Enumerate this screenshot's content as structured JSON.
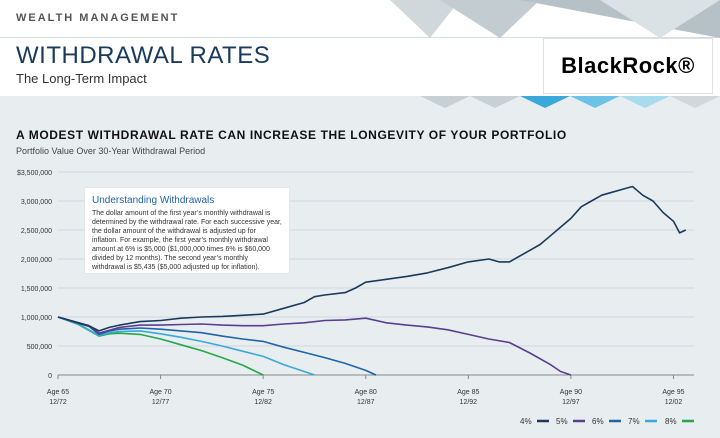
{
  "header": {
    "section": "WEALTH MANAGEMENT",
    "title": "WITHDRAWAL RATES",
    "subtitle": "The Long-Term Impact",
    "logo": "BlackRock®"
  },
  "chart_header": {
    "headline": "A MODEST WITHDRAWAL RATE CAN INCREASE THE LONGEVITY OF YOUR PORTFOLIO",
    "subheadline": "Portfolio Value Over 30-Year Withdrawal Period"
  },
  "info_box": {
    "title": "Understanding Withdrawals",
    "body": "The dollar amount of the first year’s monthly withdrawal is determined by the withdrawal rate. For each successive year, the dollar amount of the withdrawal is adjusted up for inflation. For example, the first year’s monthly withdrawal amount at 6% is $5,000 ($1,000,000 times 6% is $60,000 divided by 12 months). The second year’s monthly withdrawal is $5,435 ($5,000 adjusted up for inflation)."
  },
  "colors": {
    "navy": "#1a3a5c",
    "blue": "#1f63a8",
    "accent": "#3aa8d8"
  },
  "chart_data": {
    "type": "line",
    "title": "",
    "xlabel": "",
    "ylabel": "",
    "ylim": [
      0,
      3500000
    ],
    "xlim": [
      65,
      96
    ],
    "grid": true,
    "legend_position": "bottom-right",
    "y_ticks": [
      {
        "value": 0,
        "label": "0"
      },
      {
        "value": 500000,
        "label": "500,000"
      },
      {
        "value": 1000000,
        "label": "1,000,000"
      },
      {
        "value": 1500000,
        "label": "1,500,000"
      },
      {
        "value": 2000000,
        "label": "2,000,000"
      },
      {
        "value": 2500000,
        "label": "2,500,000"
      },
      {
        "value": 3000000,
        "label": "3,000,000"
      },
      {
        "value": 3500000,
        "label": "$3,500,000"
      }
    ],
    "x_ticks": [
      {
        "value": 65,
        "age": "Age 65",
        "date": "12/72"
      },
      {
        "value": 70,
        "age": "Age 70",
        "date": "12/77"
      },
      {
        "value": 75,
        "age": "Age 75",
        "date": "12/82"
      },
      {
        "value": 80,
        "age": "Age 80",
        "date": "12/87"
      },
      {
        "value": 85,
        "age": "Age 85",
        "date": "12/92"
      },
      {
        "value": 90,
        "age": "Age 90",
        "date": "12/97"
      },
      {
        "value": 95,
        "age": "Age 95",
        "date": "12/02"
      }
    ],
    "series": [
      {
        "name": "4%",
        "color": "#1a3a5c",
        "x": [
          65,
          66,
          66.5,
          67,
          67.5,
          68,
          69,
          70,
          71,
          72,
          73,
          74,
          75,
          76,
          77,
          77.5,
          78,
          79,
          79.5,
          80,
          81,
          82,
          83,
          84,
          85,
          86,
          86.5,
          87,
          88,
          88.5,
          89,
          89.5,
          90,
          90.5,
          91,
          91.5,
          92,
          92.5,
          93,
          93.5,
          94,
          94.5,
          95,
          95.3,
          95.6
        ],
        "y": [
          1000000,
          900000,
          850000,
          760000,
          820000,
          860000,
          920000,
          940000,
          980000,
          1000000,
          1010000,
          1030000,
          1050000,
          1150000,
          1250000,
          1350000,
          1380000,
          1420000,
          1500000,
          1600000,
          1650000,
          1700000,
          1760000,
          1850000,
          1950000,
          2000000,
          1950000,
          1950000,
          2150000,
          2250000,
          2400000,
          2550000,
          2700000,
          2900000,
          3000000,
          3100000,
          3150000,
          3200000,
          3250000,
          3100000,
          3000000,
          2800000,
          2650000,
          2450000,
          2500000
        ]
      },
      {
        "name": "5%",
        "color": "#5a3f8e",
        "x": [
          65,
          66,
          66.5,
          67,
          67.5,
          68,
          69,
          70,
          71,
          72,
          73,
          74,
          75,
          76,
          77,
          78,
          79,
          80,
          81,
          82,
          83,
          84,
          85,
          86,
          87,
          88,
          89,
          89.5,
          90
        ],
        "y": [
          1000000,
          900000,
          850000,
          720000,
          770000,
          820000,
          860000,
          860000,
          870000,
          880000,
          860000,
          850000,
          850000,
          880000,
          900000,
          940000,
          950000,
          980000,
          900000,
          860000,
          830000,
          780000,
          700000,
          620000,
          560000,
          380000,
          180000,
          60000,
          0
        ]
      },
      {
        "name": "6%",
        "color": "#1f63a8",
        "x": [
          65,
          66,
          66.5,
          67,
          67.5,
          68,
          69,
          70,
          71,
          72,
          73,
          74,
          75,
          76,
          77,
          78,
          79,
          80,
          80.5
        ],
        "y": [
          1000000,
          890000,
          840000,
          700000,
          760000,
          790000,
          810000,
          790000,
          760000,
          730000,
          670000,
          620000,
          580000,
          480000,
          390000,
          300000,
          200000,
          80000,
          0
        ]
      },
      {
        "name": "7%",
        "color": "#3aa8d8",
        "x": [
          65,
          66,
          67,
          67.5,
          68,
          69,
          70,
          71,
          72,
          73,
          74,
          75,
          76,
          77,
          77.5
        ],
        "y": [
          1000000,
          880000,
          680000,
          730000,
          750000,
          760000,
          710000,
          650000,
          580000,
          500000,
          410000,
          320000,
          180000,
          60000,
          0
        ]
      },
      {
        "name": "8%",
        "color": "#22a84a",
        "x": [
          65,
          66,
          67,
          67.5,
          68,
          69,
          70,
          71,
          72,
          73,
          74,
          75
        ],
        "y": [
          1000000,
          870000,
          670000,
          710000,
          720000,
          700000,
          620000,
          520000,
          420000,
          300000,
          170000,
          0
        ]
      }
    ]
  }
}
